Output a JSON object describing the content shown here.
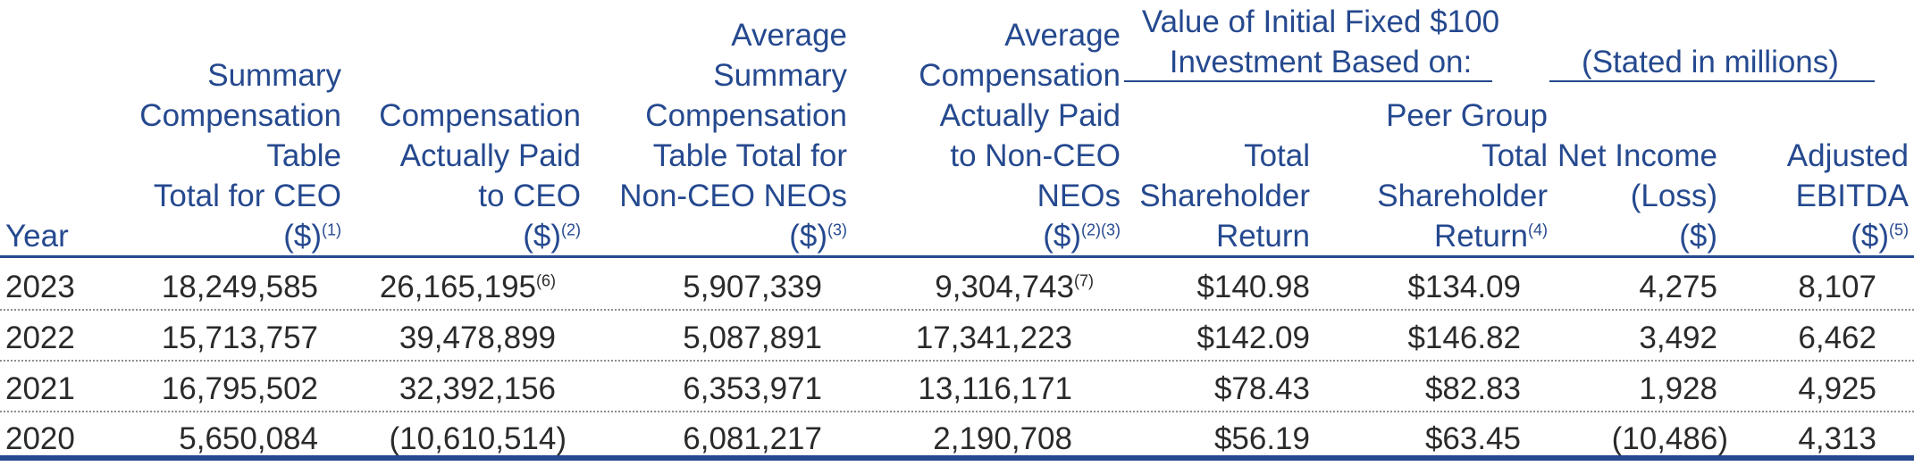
{
  "group_headers": {
    "investment": "Value of Initial Fixed $100\nInvestment Based on:",
    "millions": "(Stated in millions)"
  },
  "columns": [
    {
      "label": "Year",
      "fn": ""
    },
    {
      "label": "Summary\nCompensation\nTable\nTotal for CEO\n($)",
      "fn": "(1)"
    },
    {
      "label": "Compensation\nActually Paid\nto CEO\n($)",
      "fn": "(2)"
    },
    {
      "label": "Average\nSummary\nCompensation\nTable Total for\nNon-CEO NEOs\n($)",
      "fn": "(3)"
    },
    {
      "label": "Average\nCompensation\nActually Paid\nto Non-CEO\nNEOs\n($)",
      "fn": "(2)(3)"
    },
    {
      "label": "Total\nShareholder\nReturn",
      "fn": ""
    },
    {
      "label": "Peer Group\nTotal\nShareholder\nReturn",
      "fn": "(4)"
    },
    {
      "label": "Net Income\n(Loss)\n($)",
      "fn": ""
    },
    {
      "label": "Adjusted\nEBITDA\n($)",
      "fn": "(5)"
    }
  ],
  "rows": [
    {
      "year": "2023",
      "sct_ceo": "18,249,585",
      "cap_ceo": "26,165,195",
      "cap_ceo_fn": "(6)",
      "avg_sct": "5,907,339",
      "avg_cap": "9,304,743",
      "avg_cap_fn": "(7)",
      "tsr": "$140.98",
      "peer_tsr": "$134.09",
      "net_income": "4,275",
      "ebitda": "8,107"
    },
    {
      "year": "2022",
      "sct_ceo": "15,713,757",
      "cap_ceo": "39,478,899",
      "cap_ceo_fn": "",
      "avg_sct": "5,087,891",
      "avg_cap": "17,341,223",
      "avg_cap_fn": "",
      "tsr": "$142.09",
      "peer_tsr": "$146.82",
      "net_income": "3,492",
      "ebitda": "6,462"
    },
    {
      "year": "2021",
      "sct_ceo": "16,795,502",
      "cap_ceo": "32,392,156",
      "cap_ceo_fn": "",
      "avg_sct": "6,353,971",
      "avg_cap": "13,116,171",
      "avg_cap_fn": "",
      "tsr": "$78.43",
      "peer_tsr": "$82.83",
      "net_income": "1,928",
      "ebitda": "4,925"
    },
    {
      "year": "2020",
      "sct_ceo": "5,650,084",
      "cap_ceo": "(10,610,514)",
      "cap_ceo_fn": "",
      "avg_sct": "6,081,217",
      "avg_cap": "2,190,708",
      "avg_cap_fn": "",
      "tsr": "$56.19",
      "peer_tsr": "$63.45",
      "net_income": "(10,486)",
      "ebitda": "4,313"
    }
  ],
  "colors": {
    "header": "#25498f",
    "body_text": "#2a2a2a",
    "dotted_rule": "#8d8d8d"
  }
}
